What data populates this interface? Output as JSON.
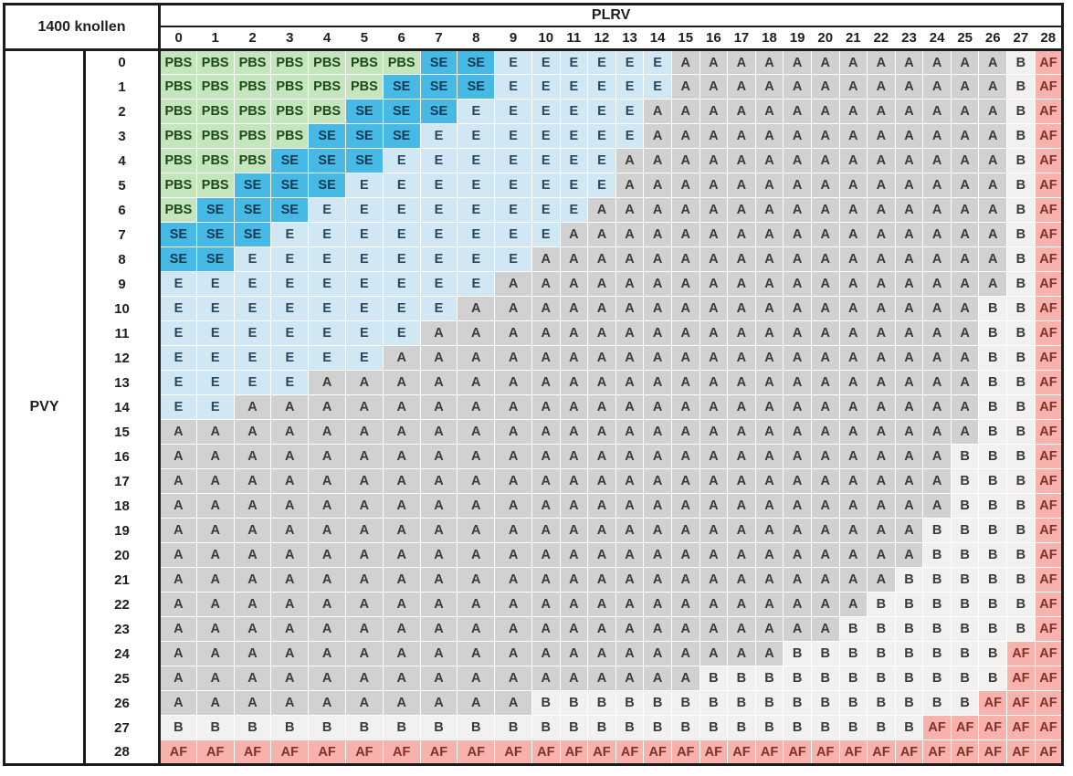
{
  "header": {
    "title": "1400 knollen",
    "col_axis_label": "PLRV",
    "row_axis_label": "PVY"
  },
  "chart_data": {
    "type": "heatmap",
    "title": "1400 knollen",
    "x_axis": {
      "label": "PLRV",
      "ticks": [
        "0",
        "1",
        "2",
        "3",
        "4",
        "5",
        "6",
        "7",
        "8",
        "9",
        "10",
        "11",
        "12",
        "13",
        "14",
        "15",
        "16",
        "17",
        "18",
        "19",
        "20",
        "21",
        "22",
        "23",
        "24",
        "25",
        "26",
        "27",
        "28"
      ]
    },
    "y_axis": {
      "label": "PVY",
      "ticks": [
        "0",
        "1",
        "2",
        "3",
        "4",
        "5",
        "6",
        "7",
        "8",
        "9",
        "10",
        "11",
        "12",
        "13",
        "14",
        "15",
        "16",
        "17",
        "18",
        "19",
        "20",
        "21",
        "22",
        "23",
        "24",
        "25",
        "26",
        "27",
        "28"
      ]
    },
    "cell_classes": [
      "PBS",
      "SE",
      "E",
      "A",
      "B",
      "AF"
    ],
    "class_styles": {
      "PBS": {
        "bg": "#c5e5bf",
        "fg": "#1e4a1a"
      },
      "SE": {
        "bg": "#47b9e5",
        "fg": "#123a52"
      },
      "E": {
        "bg": "#d2e7f4",
        "fg": "#27485f"
      },
      "A": {
        "bg": "#d2d1d1",
        "fg": "#3a3a3a"
      },
      "B": {
        "bg": "#f2f1f0",
        "fg": "#3a3a3a"
      },
      "AF": {
        "bg": "#f8b2ad",
        "fg": "#842f28"
      }
    },
    "matrix": [
      [
        "PBS",
        "PBS",
        "PBS",
        "PBS",
        "PBS",
        "PBS",
        "PBS",
        "SE",
        "SE",
        "E",
        "E",
        "E",
        "E",
        "E",
        "E",
        "A",
        "A",
        "A",
        "A",
        "A",
        "A",
        "A",
        "A",
        "A",
        "A",
        "A",
        "A",
        "B",
        "AF"
      ],
      [
        "PBS",
        "PBS",
        "PBS",
        "PBS",
        "PBS",
        "PBS",
        "SE",
        "SE",
        "SE",
        "E",
        "E",
        "E",
        "E",
        "E",
        "E",
        "A",
        "A",
        "A",
        "A",
        "A",
        "A",
        "A",
        "A",
        "A",
        "A",
        "A",
        "A",
        "B",
        "AF"
      ],
      [
        "PBS",
        "PBS",
        "PBS",
        "PBS",
        "PBS",
        "SE",
        "SE",
        "SE",
        "E",
        "E",
        "E",
        "E",
        "E",
        "E",
        "A",
        "A",
        "A",
        "A",
        "A",
        "A",
        "A",
        "A",
        "A",
        "A",
        "A",
        "A",
        "A",
        "B",
        "AF"
      ],
      [
        "PBS",
        "PBS",
        "PBS",
        "PBS",
        "SE",
        "SE",
        "SE",
        "E",
        "E",
        "E",
        "E",
        "E",
        "E",
        "E",
        "A",
        "A",
        "A",
        "A",
        "A",
        "A",
        "A",
        "A",
        "A",
        "A",
        "A",
        "A",
        "A",
        "B",
        "AF"
      ],
      [
        "PBS",
        "PBS",
        "PBS",
        "SE",
        "SE",
        "SE",
        "E",
        "E",
        "E",
        "E",
        "E",
        "E",
        "E",
        "A",
        "A",
        "A",
        "A",
        "A",
        "A",
        "A",
        "A",
        "A",
        "A",
        "A",
        "A",
        "A",
        "A",
        "B",
        "AF"
      ],
      [
        "PBS",
        "PBS",
        "SE",
        "SE",
        "SE",
        "E",
        "E",
        "E",
        "E",
        "E",
        "E",
        "E",
        "E",
        "A",
        "A",
        "A",
        "A",
        "A",
        "A",
        "A",
        "A",
        "A",
        "A",
        "A",
        "A",
        "A",
        "A",
        "B",
        "AF"
      ],
      [
        "PBS",
        "SE",
        "SE",
        "SE",
        "E",
        "E",
        "E",
        "E",
        "E",
        "E",
        "E",
        "E",
        "A",
        "A",
        "A",
        "A",
        "A",
        "A",
        "A",
        "A",
        "A",
        "A",
        "A",
        "A",
        "A",
        "A",
        "A",
        "B",
        "AF"
      ],
      [
        "SE",
        "SE",
        "SE",
        "E",
        "E",
        "E",
        "E",
        "E",
        "E",
        "E",
        "E",
        "A",
        "A",
        "A",
        "A",
        "A",
        "A",
        "A",
        "A",
        "A",
        "A",
        "A",
        "A",
        "A",
        "A",
        "A",
        "A",
        "B",
        "AF"
      ],
      [
        "SE",
        "SE",
        "E",
        "E",
        "E",
        "E",
        "E",
        "E",
        "E",
        "E",
        "A",
        "A",
        "A",
        "A",
        "A",
        "A",
        "A",
        "A",
        "A",
        "A",
        "A",
        "A",
        "A",
        "A",
        "A",
        "A",
        "A",
        "B",
        "AF"
      ],
      [
        "E",
        "E",
        "E",
        "E",
        "E",
        "E",
        "E",
        "E",
        "E",
        "A",
        "A",
        "A",
        "A",
        "A",
        "A",
        "A",
        "A",
        "A",
        "A",
        "A",
        "A",
        "A",
        "A",
        "A",
        "A",
        "A",
        "A",
        "B",
        "AF"
      ],
      [
        "E",
        "E",
        "E",
        "E",
        "E",
        "E",
        "E",
        "E",
        "A",
        "A",
        "A",
        "A",
        "A",
        "A",
        "A",
        "A",
        "A",
        "A",
        "A",
        "A",
        "A",
        "A",
        "A",
        "A",
        "A",
        "A",
        "B",
        "B",
        "AF"
      ],
      [
        "E",
        "E",
        "E",
        "E",
        "E",
        "E",
        "E",
        "A",
        "A",
        "A",
        "A",
        "A",
        "A",
        "A",
        "A",
        "A",
        "A",
        "A",
        "A",
        "A",
        "A",
        "A",
        "A",
        "A",
        "A",
        "A",
        "B",
        "B",
        "AF"
      ],
      [
        "E",
        "E",
        "E",
        "E",
        "E",
        "E",
        "A",
        "A",
        "A",
        "A",
        "A",
        "A",
        "A",
        "A",
        "A",
        "A",
        "A",
        "A",
        "A",
        "A",
        "A",
        "A",
        "A",
        "A",
        "A",
        "A",
        "B",
        "B",
        "AF"
      ],
      [
        "E",
        "E",
        "E",
        "E",
        "A",
        "A",
        "A",
        "A",
        "A",
        "A",
        "A",
        "A",
        "A",
        "A",
        "A",
        "A",
        "A",
        "A",
        "A",
        "A",
        "A",
        "A",
        "A",
        "A",
        "A",
        "A",
        "B",
        "B",
        "AF"
      ],
      [
        "E",
        "E",
        "A",
        "A",
        "A",
        "A",
        "A",
        "A",
        "A",
        "A",
        "A",
        "A",
        "A",
        "A",
        "A",
        "A",
        "A",
        "A",
        "A",
        "A",
        "A",
        "A",
        "A",
        "A",
        "A",
        "A",
        "B",
        "B",
        "AF"
      ],
      [
        "A",
        "A",
        "A",
        "A",
        "A",
        "A",
        "A",
        "A",
        "A",
        "A",
        "A",
        "A",
        "A",
        "A",
        "A",
        "A",
        "A",
        "A",
        "A",
        "A",
        "A",
        "A",
        "A",
        "A",
        "A",
        "A",
        "B",
        "B",
        "AF"
      ],
      [
        "A",
        "A",
        "A",
        "A",
        "A",
        "A",
        "A",
        "A",
        "A",
        "A",
        "A",
        "A",
        "A",
        "A",
        "A",
        "A",
        "A",
        "A",
        "A",
        "A",
        "A",
        "A",
        "A",
        "A",
        "A",
        "B",
        "B",
        "B",
        "AF"
      ],
      [
        "A",
        "A",
        "A",
        "A",
        "A",
        "A",
        "A",
        "A",
        "A",
        "A",
        "A",
        "A",
        "A",
        "A",
        "A",
        "A",
        "A",
        "A",
        "A",
        "A",
        "A",
        "A",
        "A",
        "A",
        "A",
        "B",
        "B",
        "B",
        "AF"
      ],
      [
        "A",
        "A",
        "A",
        "A",
        "A",
        "A",
        "A",
        "A",
        "A",
        "A",
        "A",
        "A",
        "A",
        "A",
        "A",
        "A",
        "A",
        "A",
        "A",
        "A",
        "A",
        "A",
        "A",
        "A",
        "A",
        "B",
        "B",
        "B",
        "AF"
      ],
      [
        "A",
        "A",
        "A",
        "A",
        "A",
        "A",
        "A",
        "A",
        "A",
        "A",
        "A",
        "A",
        "A",
        "A",
        "A",
        "A",
        "A",
        "A",
        "A",
        "A",
        "A",
        "A",
        "A",
        "A",
        "B",
        "B",
        "B",
        "B",
        "AF"
      ],
      [
        "A",
        "A",
        "A",
        "A",
        "A",
        "A",
        "A",
        "A",
        "A",
        "A",
        "A",
        "A",
        "A",
        "A",
        "A",
        "A",
        "A",
        "A",
        "A",
        "A",
        "A",
        "A",
        "A",
        "A",
        "B",
        "B",
        "B",
        "B",
        "AF"
      ],
      [
        "A",
        "A",
        "A",
        "A",
        "A",
        "A",
        "A",
        "A",
        "A",
        "A",
        "A",
        "A",
        "A",
        "A",
        "A",
        "A",
        "A",
        "A",
        "A",
        "A",
        "A",
        "A",
        "A",
        "B",
        "B",
        "B",
        "B",
        "B",
        "AF"
      ],
      [
        "A",
        "A",
        "A",
        "A",
        "A",
        "A",
        "A",
        "A",
        "A",
        "A",
        "A",
        "A",
        "A",
        "A",
        "A",
        "A",
        "A",
        "A",
        "A",
        "A",
        "A",
        "A",
        "B",
        "B",
        "B",
        "B",
        "B",
        "B",
        "AF"
      ],
      [
        "A",
        "A",
        "A",
        "A",
        "A",
        "A",
        "A",
        "A",
        "A",
        "A",
        "A",
        "A",
        "A",
        "A",
        "A",
        "A",
        "A",
        "A",
        "A",
        "A",
        "A",
        "B",
        "B",
        "B",
        "B",
        "B",
        "B",
        "B",
        "AF"
      ],
      [
        "A",
        "A",
        "A",
        "A",
        "A",
        "A",
        "A",
        "A",
        "A",
        "A",
        "A",
        "A",
        "A",
        "A",
        "A",
        "A",
        "A",
        "A",
        "A",
        "B",
        "B",
        "B",
        "B",
        "B",
        "B",
        "B",
        "B",
        "AF",
        "AF"
      ],
      [
        "A",
        "A",
        "A",
        "A",
        "A",
        "A",
        "A",
        "A",
        "A",
        "A",
        "A",
        "A",
        "A",
        "A",
        "A",
        "A",
        "B",
        "B",
        "B",
        "B",
        "B",
        "B",
        "B",
        "B",
        "B",
        "B",
        "B",
        "AF",
        "AF"
      ],
      [
        "A",
        "A",
        "A",
        "A",
        "A",
        "A",
        "A",
        "A",
        "A",
        "A",
        "B",
        "B",
        "B",
        "B",
        "B",
        "B",
        "B",
        "B",
        "B",
        "B",
        "B",
        "B",
        "B",
        "B",
        "B",
        "B",
        "AF",
        "AF",
        "AF"
      ],
      [
        "B",
        "B",
        "B",
        "B",
        "B",
        "B",
        "B",
        "B",
        "B",
        "B",
        "B",
        "B",
        "B",
        "B",
        "B",
        "B",
        "B",
        "B",
        "B",
        "B",
        "B",
        "B",
        "B",
        "B",
        "AF",
        "AF",
        "AF",
        "AF",
        "AF"
      ],
      [
        "AF",
        "AF",
        "AF",
        "AF",
        "AF",
        "AF",
        "AF",
        "AF",
        "AF",
        "AF",
        "AF",
        "AF",
        "AF",
        "AF",
        "AF",
        "AF",
        "AF",
        "AF",
        "AF",
        "AF",
        "AF",
        "AF",
        "AF",
        "AF",
        "AF",
        "AF",
        "AF",
        "AF",
        "AF"
      ]
    ]
  }
}
